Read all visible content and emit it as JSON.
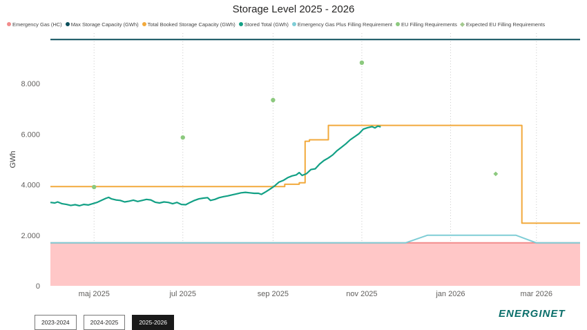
{
  "title": "Storage Level 2025 - 2026",
  "legend": [
    {
      "label": "Emergency Gas (HC)",
      "color": "#f28b8b",
      "marker": "dot"
    },
    {
      "label": "Max Storage Capacity (GWh)",
      "color": "#0b4f5c",
      "marker": "dot"
    },
    {
      "label": "Total Booked Storage Capacity (GWh)",
      "color": "#f2a93b",
      "marker": "dot"
    },
    {
      "label": "Stored Total (GWh)",
      "color": "#12a085",
      "marker": "dot"
    },
    {
      "label": "Emergency Gas Plus Filling Requirement",
      "color": "#7fcdd6",
      "marker": "dot"
    },
    {
      "label": "EU Filling Requirements",
      "color": "#8cc97e",
      "marker": "dot"
    },
    {
      "label": "Expected EU Filling Requirements",
      "color": "#a3c98f",
      "marker": "diamond"
    }
  ],
  "tabs": [
    {
      "label": "2023-2024",
      "active": false
    },
    {
      "label": "2024-2025",
      "active": false
    },
    {
      "label": "2025-2026",
      "active": true
    }
  ],
  "logo": "ENERGINET",
  "chart_data": {
    "type": "line",
    "title": "Storage Level 2025 - 2026",
    "xlabel": "",
    "ylabel": "GWh",
    "xlim": [
      "2025-04-01",
      "2026-03-31"
    ],
    "ylim": [
      0,
      10000
    ],
    "y_ticks": [
      {
        "value": 0,
        "label": "0"
      },
      {
        "value": 2000,
        "label": "2.000"
      },
      {
        "value": 4000,
        "label": "4.000"
      },
      {
        "value": 6000,
        "label": "6.000"
      },
      {
        "value": 8000,
        "label": "8.000"
      }
    ],
    "x_ticks": [
      {
        "date": "2025-05-01",
        "label": "maj 2025"
      },
      {
        "date": "2025-07-01",
        "label": "jul 2025"
      },
      {
        "date": "2025-09-01",
        "label": "sep 2025"
      },
      {
        "date": "2025-11-01",
        "label": "nov 2025"
      },
      {
        "date": "2026-01-01",
        "label": "jan 2026"
      },
      {
        "date": "2026-03-01",
        "label": "mar 2026"
      }
    ],
    "grid": {
      "x": true,
      "y": false,
      "x_style": "dotted"
    },
    "legend_position": "top",
    "series": [
      {
        "name": "Emergency Gas (HC)",
        "kind": "area",
        "color": "#ffc7c7",
        "points": [
          [
            "2025-04-01",
            1700
          ],
          [
            "2026-03-31",
            1700
          ]
        ]
      },
      {
        "name": "Max Storage Capacity (GWh)",
        "kind": "line",
        "color": "#0b4f5c",
        "points": [
          [
            "2025-04-01",
            9750
          ],
          [
            "2026-03-31",
            9750
          ]
        ]
      },
      {
        "name": "Total Booked Storage Capacity (GWh)",
        "kind": "step",
        "color": "#f2a93b",
        "points": [
          [
            "2025-04-01",
            3930
          ],
          [
            "2025-09-09",
            3930
          ],
          [
            "2025-09-09",
            4020
          ],
          [
            "2025-09-19",
            4020
          ],
          [
            "2025-09-19",
            4080
          ],
          [
            "2025-09-23",
            4080
          ],
          [
            "2025-09-23",
            5720
          ],
          [
            "2025-09-26",
            5720
          ],
          [
            "2025-09-26",
            5780
          ],
          [
            "2025-10-09",
            5780
          ],
          [
            "2025-10-09",
            6350
          ],
          [
            "2026-02-19",
            6350
          ],
          [
            "2026-02-19",
            2480
          ],
          [
            "2026-03-31",
            2480
          ]
        ]
      },
      {
        "name": "Stored Total (GWh)",
        "kind": "line",
        "color": "#12a085",
        "points": [
          [
            "2025-04-01",
            3300
          ],
          [
            "2025-04-04",
            3280
          ],
          [
            "2025-04-06",
            3320
          ],
          [
            "2025-04-09",
            3250
          ],
          [
            "2025-04-12",
            3220
          ],
          [
            "2025-04-15",
            3180
          ],
          [
            "2025-04-18",
            3210
          ],
          [
            "2025-04-21",
            3170
          ],
          [
            "2025-04-24",
            3220
          ],
          [
            "2025-04-27",
            3200
          ],
          [
            "2025-04-30",
            3250
          ],
          [
            "2025-05-03",
            3300
          ],
          [
            "2025-05-06",
            3380
          ],
          [
            "2025-05-09",
            3460
          ],
          [
            "2025-05-11",
            3500
          ],
          [
            "2025-05-13",
            3440
          ],
          [
            "2025-05-16",
            3400
          ],
          [
            "2025-05-19",
            3380
          ],
          [
            "2025-05-22",
            3320
          ],
          [
            "2025-05-25",
            3350
          ],
          [
            "2025-05-28",
            3390
          ],
          [
            "2025-05-31",
            3340
          ],
          [
            "2025-06-03",
            3380
          ],
          [
            "2025-06-06",
            3420
          ],
          [
            "2025-06-09",
            3400
          ],
          [
            "2025-06-12",
            3310
          ],
          [
            "2025-06-15",
            3280
          ],
          [
            "2025-06-18",
            3320
          ],
          [
            "2025-06-21",
            3300
          ],
          [
            "2025-06-24",
            3250
          ],
          [
            "2025-06-27",
            3300
          ],
          [
            "2025-06-30",
            3220
          ],
          [
            "2025-07-03",
            3210
          ],
          [
            "2025-07-06",
            3300
          ],
          [
            "2025-07-09",
            3380
          ],
          [
            "2025-07-12",
            3440
          ],
          [
            "2025-07-15",
            3470
          ],
          [
            "2025-07-18",
            3490
          ],
          [
            "2025-07-20",
            3380
          ],
          [
            "2025-07-23",
            3420
          ],
          [
            "2025-07-26",
            3490
          ],
          [
            "2025-07-29",
            3530
          ],
          [
            "2025-08-01",
            3560
          ],
          [
            "2025-08-04",
            3600
          ],
          [
            "2025-08-07",
            3640
          ],
          [
            "2025-08-10",
            3680
          ],
          [
            "2025-08-13",
            3700
          ],
          [
            "2025-08-16",
            3680
          ],
          [
            "2025-08-19",
            3660
          ],
          [
            "2025-08-22",
            3660
          ],
          [
            "2025-08-24",
            3620
          ],
          [
            "2025-08-27",
            3720
          ],
          [
            "2025-08-30",
            3830
          ],
          [
            "2025-09-02",
            3950
          ],
          [
            "2025-09-05",
            4100
          ],
          [
            "2025-09-08",
            4170
          ],
          [
            "2025-09-11",
            4280
          ],
          [
            "2025-09-14",
            4350
          ],
          [
            "2025-09-17",
            4390
          ],
          [
            "2025-09-19",
            4480
          ],
          [
            "2025-09-21",
            4370
          ],
          [
            "2025-09-24",
            4440
          ],
          [
            "2025-09-27",
            4600
          ],
          [
            "2025-09-30",
            4630
          ],
          [
            "2025-10-03",
            4820
          ],
          [
            "2025-10-06",
            4960
          ],
          [
            "2025-10-09",
            5060
          ],
          [
            "2025-10-12",
            5180
          ],
          [
            "2025-10-15",
            5350
          ],
          [
            "2025-10-18",
            5480
          ],
          [
            "2025-10-21",
            5620
          ],
          [
            "2025-10-24",
            5780
          ],
          [
            "2025-10-27",
            5900
          ],
          [
            "2025-10-30",
            6020
          ],
          [
            "2025-11-02",
            6200
          ],
          [
            "2025-11-05",
            6260
          ],
          [
            "2025-11-08",
            6300
          ],
          [
            "2025-11-10",
            6250
          ],
          [
            "2025-11-12",
            6320
          ],
          [
            "2025-11-14",
            6290
          ]
        ]
      },
      {
        "name": "Emergency Gas Plus Filling Requirement",
        "kind": "line",
        "color": "#7fcdd6",
        "points": [
          [
            "2025-04-01",
            1700
          ],
          [
            "2025-12-01",
            1700
          ],
          [
            "2025-12-16",
            2000
          ],
          [
            "2026-02-15",
            2000
          ],
          [
            "2026-03-01",
            1700
          ],
          [
            "2026-03-31",
            1700
          ]
        ]
      },
      {
        "name": "EU Filling Requirements",
        "kind": "scatter",
        "color": "#8cc97e",
        "points": [
          [
            "2025-05-01",
            3910
          ],
          [
            "2025-07-01",
            5870
          ],
          [
            "2025-09-01",
            7350
          ],
          [
            "2025-11-01",
            8830
          ]
        ]
      },
      {
        "name": "Expected EU Filling Requirements",
        "kind": "diamond",
        "color": "#8cc97e",
        "points": [
          [
            "2026-02-01",
            4430
          ]
        ]
      }
    ]
  }
}
